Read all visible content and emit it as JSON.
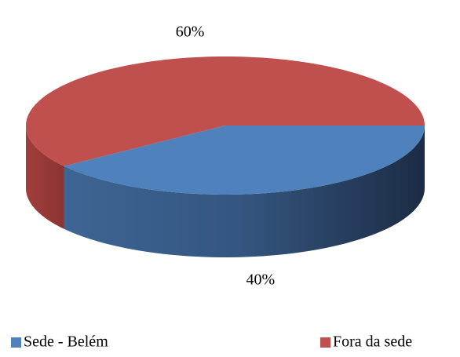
{
  "chart_data": {
    "type": "pie3d",
    "categories": [
      "Sede - Belém",
      "Fora da sede"
    ],
    "values": [
      40,
      60
    ],
    "value_labels": [
      "40%",
      "60%"
    ],
    "colors": [
      "#4f81bd",
      "#c0504d"
    ],
    "legend": "bottom"
  }
}
